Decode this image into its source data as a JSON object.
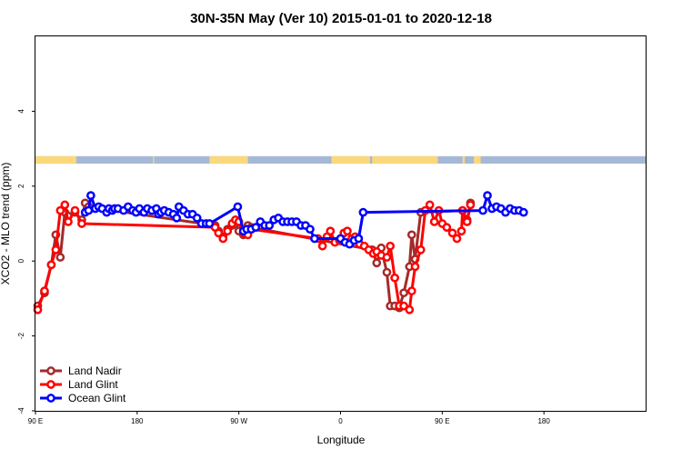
{
  "chart_data": {
    "type": "line",
    "title": "30N-35N May (Ver 10)   2015-01-01 to 2020-12-18",
    "xlabel": "Longitude",
    "ylabel": "XCO2 - MLO trend (ppm)",
    "xlim": [
      -90,
      180
    ],
    "ylim": [
      -4,
      6
    ],
    "x_ticks": [
      {
        "value": -90,
        "label": "90 E"
      },
      {
        "value": -45,
        "label": "180"
      },
      {
        "value": 0,
        "label": "90 W"
      },
      {
        "value": 45,
        "label": "0"
      },
      {
        "value": 90,
        "label": "90 E"
      },
      {
        "value": 135,
        "label": "180"
      }
    ],
    "y_ticks": [
      {
        "value": -4,
        "label": "-4"
      },
      {
        "value": -2,
        "label": "-2"
      },
      {
        "value": 0,
        "label": "0"
      },
      {
        "value": 2,
        "label": "2"
      },
      {
        "value": 4,
        "label": "4"
      }
    ],
    "grid": false,
    "legend_position": "bottom-left",
    "surface_strip": {
      "y_range": [
        2.6,
        2.8
      ],
      "ocean_color": "#a5b9d6",
      "land_color": "#fcd87d",
      "land_segments": [
        [
          -90,
          -72
        ],
        [
          -75,
          -73.5
        ],
        [
          -73,
          -72
        ],
        [
          -38,
          -37.5
        ],
        [
          -13,
          -9
        ],
        [
          -9,
          4
        ],
        [
          41,
          42
        ],
        [
          42,
          56
        ],
        [
          56,
          58
        ],
        [
          59,
          88
        ],
        [
          99,
          100
        ],
        [
          104,
          107
        ]
      ]
    },
    "series": [
      {
        "name": "Land Nadir",
        "color": "#a52a2a",
        "x": [
          -89.0,
          -86.0,
          -83.0,
          -81.0,
          -79.0,
          -77.0,
          -75.5,
          -72.5,
          -69.5,
          -68.0,
          -66.5,
          -10.5,
          -9.0,
          -7.0,
          -5.0,
          -3.0,
          -1.5,
          0.0,
          2.0,
          4.0,
          5.5,
          59.0,
          61.0,
          63.0,
          65.5,
          67.0,
          69.0,
          71.0,
          73.0,
          75.5,
          76.5,
          78.0,
          80.5,
          99.0,
          101.0,
          102.5
        ],
        "y": [
          -1.2,
          -0.85,
          -0.1,
          0.7,
          0.1,
          1.3,
          1.2,
          1.3,
          1.1,
          1.55,
          1.45,
          0.95,
          0.8,
          0.65,
          0.85,
          0.95,
          1.0,
          0.8,
          0.7,
          0.95,
          0.9,
          0.3,
          -0.05,
          0.35,
          -0.3,
          -1.2,
          -1.2,
          -1.25,
          -0.85,
          -0.15,
          0.7,
          0.05,
          1.3,
          1.35,
          1.1,
          1.55
        ]
      },
      {
        "name": "Land Glint",
        "color": "#ff0000",
        "x": [
          -89.0,
          -86.0,
          -83.0,
          -81.0,
          -79.0,
          -77.0,
          -75.5,
          -72.5,
          -69.5,
          -10.5,
          -9.0,
          -7.0,
          -5.0,
          -3.0,
          -1.5,
          0.0,
          2.0,
          4.0,
          5.5,
          35.0,
          37.0,
          39.0,
          40.5,
          42.5,
          44.5,
          46.5,
          48.0,
          50.0,
          51.5,
          53.5,
          55.5,
          57.5,
          59.5,
          61.0,
          63.0,
          65.5,
          67.0,
          69.0,
          71.0,
          73.0,
          75.5,
          76.5,
          78.0,
          80.5,
          82.5,
          84.5,
          86.5,
          88.5,
          90.0,
          92.0,
          94.5,
          96.5,
          98.5,
          99.0,
          101.0,
          102.5
        ],
        "y": [
          -1.3,
          -0.8,
          -0.1,
          0.3,
          1.35,
          1.5,
          1.05,
          1.35,
          1.0,
          0.9,
          0.75,
          0.6,
          0.8,
          1.0,
          1.1,
          1.05,
          0.75,
          0.7,
          0.85,
          0.6,
          0.4,
          0.65,
          0.8,
          0.5,
          0.55,
          0.75,
          0.8,
          0.6,
          0.65,
          0.45,
          0.4,
          0.3,
          0.2,
          0.25,
          0.15,
          0.1,
          0.4,
          -0.45,
          -1.2,
          -1.2,
          -1.3,
          -0.8,
          -0.15,
          0.3,
          1.35,
          1.5,
          1.05,
          1.35,
          1.0,
          0.9,
          0.75,
          0.6,
          0.8,
          1.35,
          1.05,
          1.5
        ],
        "note_x_units": "degrees along axis"
      },
      {
        "name": "Ocean Glint",
        "color": "#0000ff",
        "x": [
          -68.0,
          -66.5,
          -65.5,
          -63.5,
          -62.0,
          -60.5,
          -58.5,
          -57.5,
          -56.0,
          -55.0,
          -53.5,
          -51.0,
          -49.0,
          -47.0,
          -45.5,
          -44.0,
          -42.0,
          -40.5,
          -38.5,
          -36.5,
          -35.5,
          -34.5,
          -33.0,
          -31.0,
          -29.0,
          -27.5,
          -26.5,
          -24.5,
          -22.5,
          -20.5,
          -18.5,
          -16.5,
          -14.5,
          -13.0,
          -0.5,
          2.0,
          3.5,
          5.5,
          7.5,
          9.5,
          11.5,
          13.5,
          15.5,
          17.5,
          19.5,
          21.5,
          23.5,
          25.5,
          27.5,
          29.5,
          31.5,
          33.5,
          45.0,
          47.0,
          49.0,
          51.0,
          53.0,
          55.0,
          108.0,
          110.0,
          112.0,
          114.0,
          116.0,
          118.0,
          120.0,
          122.0,
          124.0,
          126.0
        ],
        "y": [
          1.3,
          1.35,
          1.75,
          1.4,
          1.45,
          1.4,
          1.3,
          1.4,
          1.35,
          1.4,
          1.4,
          1.35,
          1.45,
          1.35,
          1.3,
          1.4,
          1.3,
          1.4,
          1.35,
          1.4,
          1.25,
          1.3,
          1.35,
          1.3,
          1.25,
          1.15,
          1.45,
          1.35,
          1.25,
          1.25,
          1.15,
          1.0,
          1.0,
          1.0,
          1.45,
          0.8,
          0.85,
          0.85,
          0.9,
          1.05,
          0.95,
          0.95,
          1.1,
          1.15,
          1.05,
          1.05,
          1.05,
          1.05,
          0.95,
          0.95,
          0.85,
          0.6,
          0.6,
          0.5,
          0.45,
          0.55,
          0.6,
          1.3,
          1.35,
          1.75,
          1.4,
          1.45,
          1.4,
          1.3,
          1.4,
          1.35,
          1.35,
          1.3
        ]
      }
    ]
  }
}
